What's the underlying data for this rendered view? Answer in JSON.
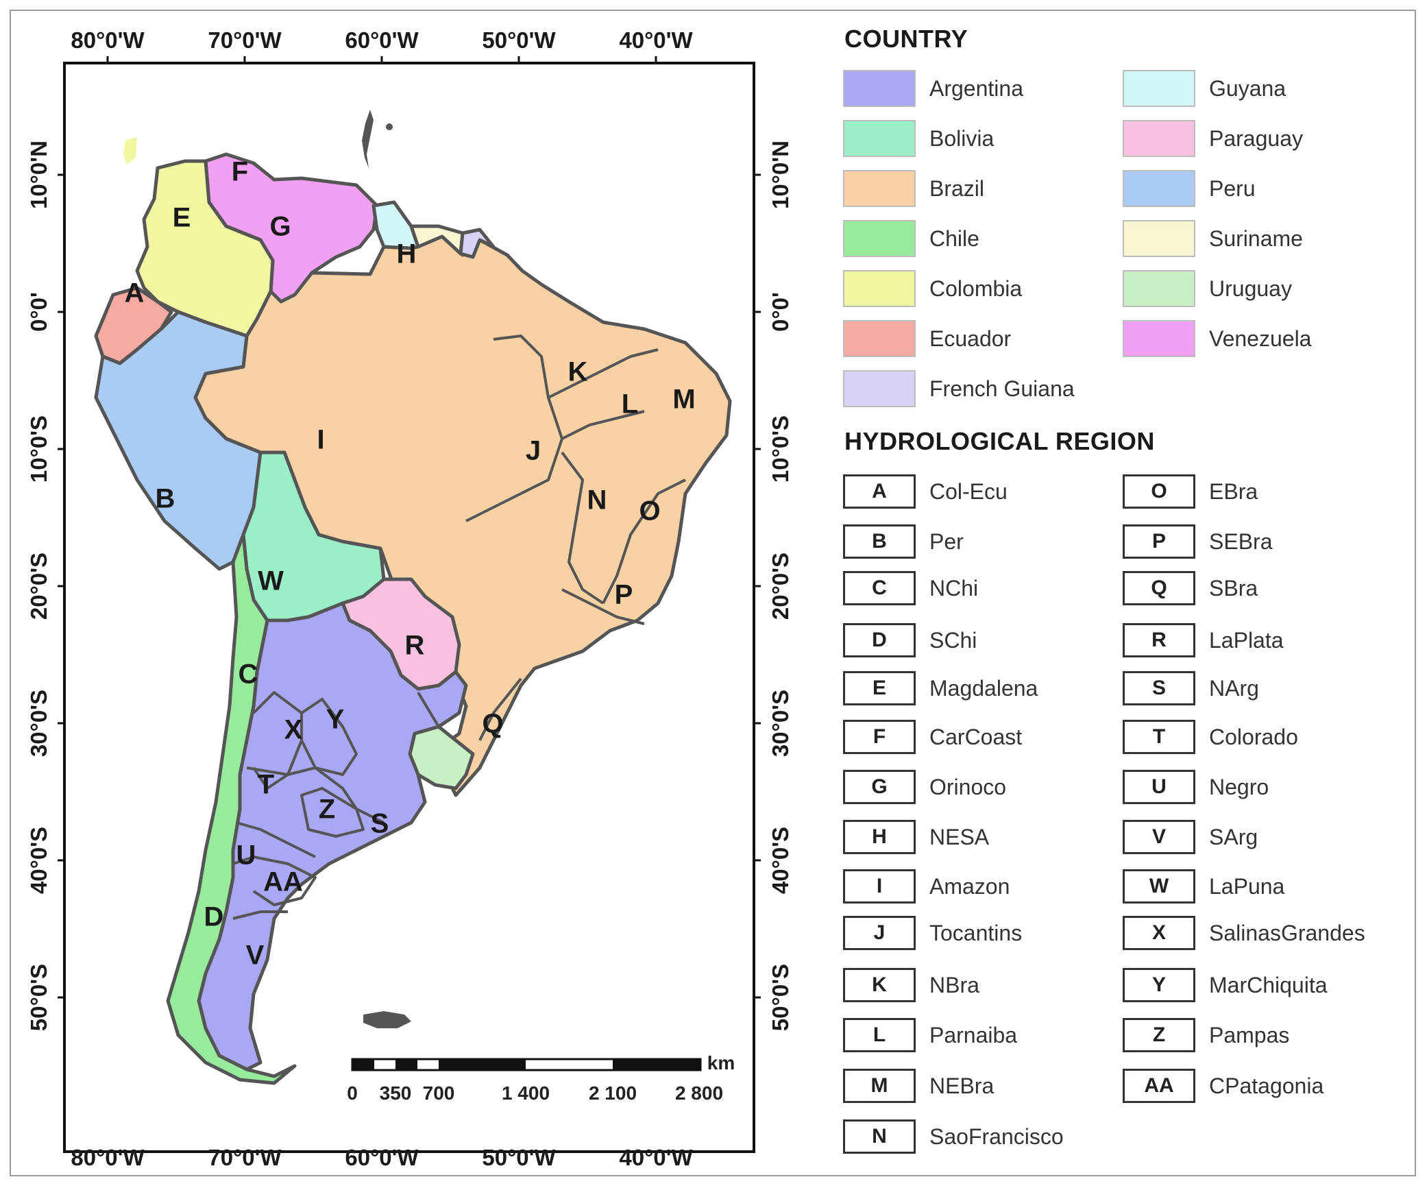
{
  "map": {
    "lon_top": [
      "80°0'W",
      "70°0'W",
      "60°0'W",
      "50°0'W",
      "40°0'W"
    ],
    "lon_bottom": [
      "80°0'W",
      "70°0'W",
      "60°0'W",
      "50°0'W",
      "40°0'W"
    ],
    "lat_left": [
      "10°0'N",
      "0°0'",
      "10°0'S",
      "20°0'S",
      "30°0'S",
      "40°0'S",
      "50°0'S"
    ],
    "lat_right": [
      "10°0'N",
      "0°0'",
      "10°0'S",
      "20°0'S",
      "30°0'S",
      "40°0'S",
      "50°0'S"
    ],
    "region_codes": [
      "A",
      "B",
      "C",
      "D",
      "E",
      "F",
      "G",
      "H",
      "I",
      "J",
      "K",
      "L",
      "M",
      "N",
      "O",
      "P",
      "Q",
      "R",
      "S",
      "T",
      "U",
      "V",
      "W",
      "X",
      "Y",
      "Z",
      "AA"
    ],
    "scale": {
      "unit": "km",
      "ticks": [
        "0",
        "350",
        "700",
        "1 400",
        "2 100",
        "2 800"
      ]
    }
  },
  "legend": {
    "country_title": "COUNTRY",
    "countries": [
      {
        "name": "Argentina",
        "color": "#aaa8f5"
      },
      {
        "name": "Bolivia",
        "color": "#9aefc8"
      },
      {
        "name": "Brazil",
        "color": "#f8d2a4"
      },
      {
        "name": "Chile",
        "color": "#96ec9c"
      },
      {
        "name": "Colombia",
        "color": "#f1f7a1"
      },
      {
        "name": "Ecuador",
        "color": "#f5aaa2"
      },
      {
        "name": "French Guiana",
        "color": "#d6d3f6"
      },
      {
        "name": "Guyana",
        "color": "#d3f6f7"
      },
      {
        "name": "Paraguay",
        "color": "#f8c1df"
      },
      {
        "name": "Peru",
        "color": "#a9cbf4"
      },
      {
        "name": "Suriname",
        "color": "#f8f7d1"
      },
      {
        "name": "Uruguay",
        "color": "#c9f0c4"
      },
      {
        "name": "Venezuela",
        "color": "#f1a0f2"
      }
    ],
    "hydro_title": "HYDROLOGICAL REGION",
    "regions": [
      {
        "code": "A",
        "name": "Col-Ecu"
      },
      {
        "code": "B",
        "name": "Per"
      },
      {
        "code": "C",
        "name": "NChi"
      },
      {
        "code": "D",
        "name": "SChi"
      },
      {
        "code": "E",
        "name": "Magdalena"
      },
      {
        "code": "F",
        "name": "CarCoast"
      },
      {
        "code": "G",
        "name": "Orinoco"
      },
      {
        "code": "H",
        "name": "NESA"
      },
      {
        "code": "I",
        "name": "Amazon"
      },
      {
        "code": "J",
        "name": "Tocantins"
      },
      {
        "code": "K",
        "name": "NBra"
      },
      {
        "code": "L",
        "name": "Parnaiba"
      },
      {
        "code": "M",
        "name": "NEBra"
      },
      {
        "code": "N",
        "name": "SaoFrancisco"
      },
      {
        "code": "O",
        "name": "EBra"
      },
      {
        "code": "P",
        "name": "SEBra"
      },
      {
        "code": "Q",
        "name": "SBra"
      },
      {
        "code": "R",
        "name": "LaPlata"
      },
      {
        "code": "S",
        "name": "NArg"
      },
      {
        "code": "T",
        "name": "Colorado"
      },
      {
        "code": "U",
        "name": "Negro"
      },
      {
        "code": "V",
        "name": "SArg"
      },
      {
        "code": "W",
        "name": "LaPuna"
      },
      {
        "code": "X",
        "name": "SalinasGrandes"
      },
      {
        "code": "Y",
        "name": "MarChiquita"
      },
      {
        "code": "Z",
        "name": "Pampas"
      },
      {
        "code": "AA",
        "name": "CPatagonia"
      }
    ]
  }
}
